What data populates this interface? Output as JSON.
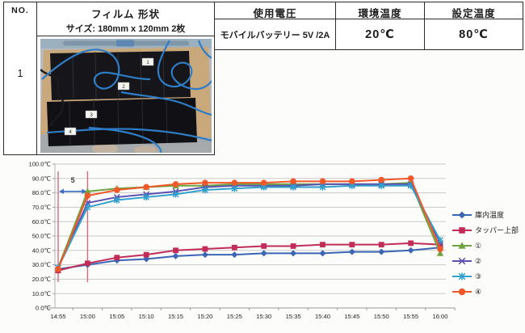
{
  "table": {
    "col_no": {
      "header": "NO.",
      "value": "1"
    },
    "col_film": {
      "header": "フィルム 形状",
      "size_label": "サイズ: 180mm x 120mm 2枚"
    },
    "col_voltage": {
      "header": "使用電圧",
      "value": "モバイルバッテリー 5V /2A"
    },
    "col_env": {
      "header": "環境温度",
      "value": "20℃"
    },
    "col_set": {
      "header": "設定温度",
      "value": "80℃"
    }
  },
  "photo": {
    "description": "two black heater films on cardboard with blue thermocouple wires",
    "labels": [
      "1",
      "2",
      "3",
      "4"
    ]
  },
  "chart_data": {
    "type": "line",
    "x": [
      "14:55",
      "15:00",
      "15:05",
      "15:10",
      "15:15",
      "15:20",
      "15:25",
      "15:30",
      "15:35",
      "15:40",
      "15:45",
      "15:50",
      "15:55",
      "16:00"
    ],
    "yticks": [
      "0.0℃",
      "10.0℃",
      "20.0℃",
      "30.0℃",
      "40.0℃",
      "50.0℃",
      "60.0℃",
      "70.0℃",
      "80.0℃",
      "90.0℃",
      "100.0℃"
    ],
    "ylim": [
      0,
      100
    ],
    "grid": true,
    "legend_position": "right",
    "series": [
      {
        "name": "庫内温度",
        "color": "#3A66B5",
        "marker": "diamond",
        "values": [
          27,
          30,
          33,
          34,
          36,
          37,
          37,
          38,
          38,
          38,
          39,
          39,
          40,
          42
        ]
      },
      {
        "name": "タッパー上部",
        "color": "#C22C58",
        "marker": "square",
        "values": [
          26,
          31,
          35,
          37,
          40,
          41,
          42,
          43,
          43,
          44,
          44,
          44,
          45,
          44
        ]
      },
      {
        "name": "①",
        "color": "#6FA33F",
        "marker": "triangle",
        "values": [
          28,
          81,
          83,
          84,
          85,
          85,
          86,
          86,
          86,
          86,
          86,
          86,
          87,
          38
        ]
      },
      {
        "name": "②",
        "color": "#5B50B0",
        "marker": "x",
        "values": [
          28,
          73,
          77,
          79,
          81,
          84,
          85,
          85,
          85,
          86,
          86,
          86,
          86,
          45
        ]
      },
      {
        "name": "③",
        "color": "#32A0CC",
        "marker": "asterisk",
        "values": [
          28,
          70,
          75,
          77,
          79,
          82,
          83,
          84,
          84,
          84,
          85,
          85,
          85,
          47
        ]
      },
      {
        "name": "④",
        "color": "#F0582A",
        "marker": "circle",
        "values": [
          27,
          78,
          82,
          84,
          86,
          87,
          87,
          87,
          88,
          88,
          88,
          89,
          90,
          41
        ]
      }
    ],
    "annotation": {
      "label": "5",
      "x_from_index": 0,
      "x_to_index": 1,
      "line_top_value": 95,
      "line_bottom_value": 18,
      "arrow_value": 81,
      "label_value": 87,
      "line_color": "#D56A82",
      "arrow_color": "#3A6CC6"
    }
  }
}
